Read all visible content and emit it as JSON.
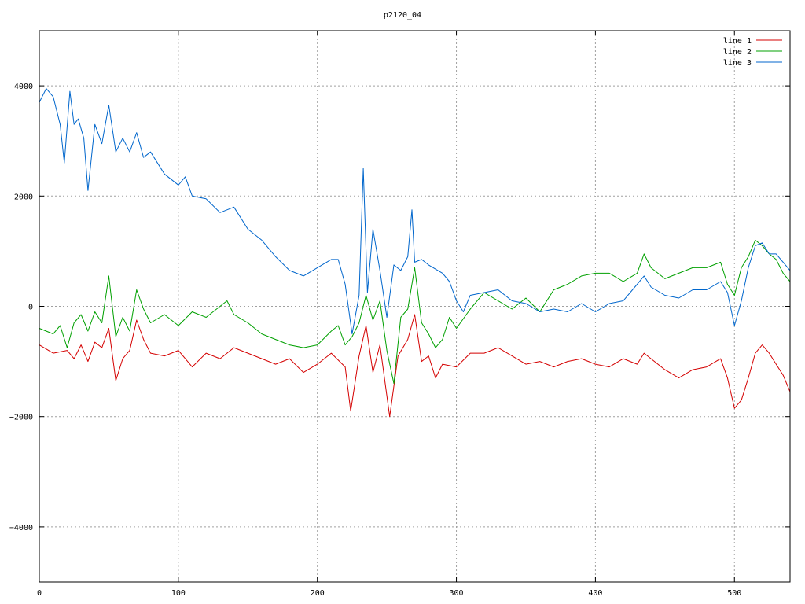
{
  "chart_data": {
    "type": "line",
    "title": "p2120_04",
    "xlabel": "",
    "ylabel": "",
    "xlim": [
      0,
      540
    ],
    "ylim": [
      -5000,
      5000
    ],
    "x_ticks": [
      0,
      100,
      200,
      300,
      400,
      500
    ],
    "y_ticks": [
      -4000,
      -2000,
      0,
      2000,
      4000
    ],
    "x_tick_labels": [
      "0",
      "100",
      "200",
      "300",
      "400",
      "500"
    ],
    "y_tick_labels": [
      "−4000",
      "−2000",
      "0",
      "2000",
      "4000"
    ],
    "grid": true,
    "legend_position": "top-right",
    "series": [
      {
        "name": "line 1",
        "color": "#d40000",
        "points": [
          [
            0,
            -700
          ],
          [
            10,
            -850
          ],
          [
            20,
            -800
          ],
          [
            25,
            -950
          ],
          [
            30,
            -700
          ],
          [
            35,
            -1000
          ],
          [
            40,
            -650
          ],
          [
            45,
            -750
          ],
          [
            50,
            -400
          ],
          [
            55,
            -1350
          ],
          [
            60,
            -950
          ],
          [
            65,
            -800
          ],
          [
            70,
            -250
          ],
          [
            75,
            -600
          ],
          [
            80,
            -850
          ],
          [
            90,
            -900
          ],
          [
            100,
            -800
          ],
          [
            110,
            -1100
          ],
          [
            120,
            -850
          ],
          [
            130,
            -950
          ],
          [
            140,
            -750
          ],
          [
            150,
            -850
          ],
          [
            160,
            -950
          ],
          [
            170,
            -1050
          ],
          [
            180,
            -950
          ],
          [
            190,
            -1200
          ],
          [
            200,
            -1050
          ],
          [
            210,
            -850
          ],
          [
            220,
            -1100
          ],
          [
            224,
            -1900
          ],
          [
            230,
            -900
          ],
          [
            235,
            -350
          ],
          [
            240,
            -1200
          ],
          [
            245,
            -700
          ],
          [
            252,
            -2000
          ],
          [
            258,
            -900
          ],
          [
            265,
            -600
          ],
          [
            270,
            -150
          ],
          [
            275,
            -1000
          ],
          [
            280,
            -900
          ],
          [
            285,
            -1300
          ],
          [
            290,
            -1050
          ],
          [
            300,
            -1100
          ],
          [
            310,
            -850
          ],
          [
            320,
            -850
          ],
          [
            330,
            -750
          ],
          [
            340,
            -900
          ],
          [
            350,
            -1050
          ],
          [
            360,
            -1000
          ],
          [
            370,
            -1100
          ],
          [
            380,
            -1000
          ],
          [
            390,
            -950
          ],
          [
            400,
            -1050
          ],
          [
            410,
            -1100
          ],
          [
            420,
            -950
          ],
          [
            430,
            -1050
          ],
          [
            435,
            -850
          ],
          [
            440,
            -950
          ],
          [
            450,
            -1150
          ],
          [
            460,
            -1300
          ],
          [
            470,
            -1150
          ],
          [
            480,
            -1100
          ],
          [
            490,
            -950
          ],
          [
            495,
            -1300
          ],
          [
            500,
            -1850
          ],
          [
            505,
            -1700
          ],
          [
            510,
            -1300
          ],
          [
            515,
            -850
          ],
          [
            520,
            -700
          ],
          [
            525,
            -850
          ],
          [
            530,
            -1050
          ],
          [
            535,
            -1250
          ],
          [
            540,
            -1550
          ]
        ]
      },
      {
        "name": "line 2",
        "color": "#00a000",
        "points": [
          [
            0,
            -400
          ],
          [
            10,
            -500
          ],
          [
            15,
            -350
          ],
          [
            20,
            -750
          ],
          [
            25,
            -300
          ],
          [
            30,
            -150
          ],
          [
            35,
            -450
          ],
          [
            40,
            -100
          ],
          [
            45,
            -300
          ],
          [
            50,
            550
          ],
          [
            55,
            -550
          ],
          [
            60,
            -200
          ],
          [
            65,
            -450
          ],
          [
            70,
            300
          ],
          [
            75,
            -50
          ],
          [
            80,
            -300
          ],
          [
            90,
            -150
          ],
          [
            100,
            -350
          ],
          [
            110,
            -100
          ],
          [
            120,
            -200
          ],
          [
            130,
            0
          ],
          [
            135,
            100
          ],
          [
            140,
            -150
          ],
          [
            150,
            -300
          ],
          [
            160,
            -500
          ],
          [
            170,
            -600
          ],
          [
            180,
            -700
          ],
          [
            190,
            -750
          ],
          [
            200,
            -700
          ],
          [
            210,
            -450
          ],
          [
            215,
            -350
          ],
          [
            220,
            -700
          ],
          [
            225,
            -550
          ],
          [
            230,
            -300
          ],
          [
            235,
            200
          ],
          [
            240,
            -250
          ],
          [
            245,
            100
          ],
          [
            250,
            -800
          ],
          [
            255,
            -1400
          ],
          [
            260,
            -200
          ],
          [
            265,
            -50
          ],
          [
            270,
            700
          ],
          [
            275,
            -300
          ],
          [
            280,
            -500
          ],
          [
            285,
            -750
          ],
          [
            290,
            -600
          ],
          [
            295,
            -200
          ],
          [
            300,
            -400
          ],
          [
            310,
            -50
          ],
          [
            320,
            250
          ],
          [
            330,
            100
          ],
          [
            340,
            -50
          ],
          [
            350,
            150
          ],
          [
            360,
            -100
          ],
          [
            370,
            300
          ],
          [
            380,
            400
          ],
          [
            390,
            550
          ],
          [
            400,
            600
          ],
          [
            410,
            600
          ],
          [
            420,
            450
          ],
          [
            430,
            600
          ],
          [
            435,
            950
          ],
          [
            440,
            700
          ],
          [
            450,
            500
          ],
          [
            460,
            600
          ],
          [
            470,
            700
          ],
          [
            480,
            700
          ],
          [
            490,
            800
          ],
          [
            495,
            400
          ],
          [
            500,
            200
          ],
          [
            505,
            700
          ],
          [
            510,
            900
          ],
          [
            515,
            1200
          ],
          [
            520,
            1100
          ],
          [
            525,
            950
          ],
          [
            530,
            850
          ],
          [
            535,
            600
          ],
          [
            540,
            450
          ]
        ]
      },
      {
        "name": "line 3",
        "color": "#0066cc",
        "points": [
          [
            0,
            3700
          ],
          [
            5,
            3950
          ],
          [
            10,
            3800
          ],
          [
            15,
            3300
          ],
          [
            18,
            2600
          ],
          [
            22,
            3900
          ],
          [
            25,
            3300
          ],
          [
            28,
            3400
          ],
          [
            32,
            3050
          ],
          [
            35,
            2100
          ],
          [
            40,
            3300
          ],
          [
            45,
            2950
          ],
          [
            50,
            3650
          ],
          [
            55,
            2800
          ],
          [
            60,
            3050
          ],
          [
            65,
            2800
          ],
          [
            70,
            3150
          ],
          [
            75,
            2700
          ],
          [
            80,
            2800
          ],
          [
            90,
            2400
          ],
          [
            100,
            2200
          ],
          [
            105,
            2350
          ],
          [
            110,
            2000
          ],
          [
            120,
            1950
          ],
          [
            130,
            1700
          ],
          [
            140,
            1800
          ],
          [
            150,
            1400
          ],
          [
            160,
            1200
          ],
          [
            170,
            900
          ],
          [
            180,
            650
          ],
          [
            190,
            550
          ],
          [
            200,
            700
          ],
          [
            210,
            850
          ],
          [
            215,
            850
          ],
          [
            220,
            400
          ],
          [
            225,
            -500
          ],
          [
            230,
            200
          ],
          [
            233,
            2500
          ],
          [
            236,
            250
          ],
          [
            240,
            1400
          ],
          [
            245,
            650
          ],
          [
            250,
            -200
          ],
          [
            255,
            750
          ],
          [
            260,
            650
          ],
          [
            265,
            900
          ],
          [
            268,
            1750
          ],
          [
            270,
            800
          ],
          [
            275,
            850
          ],
          [
            280,
            750
          ],
          [
            290,
            600
          ],
          [
            295,
            450
          ],
          [
            300,
            100
          ],
          [
            305,
            -100
          ],
          [
            310,
            200
          ],
          [
            320,
            250
          ],
          [
            330,
            300
          ],
          [
            340,
            100
          ],
          [
            350,
            50
          ],
          [
            360,
            -100
          ],
          [
            370,
            -50
          ],
          [
            380,
            -100
          ],
          [
            390,
            50
          ],
          [
            400,
            -100
          ],
          [
            410,
            50
          ],
          [
            420,
            100
          ],
          [
            430,
            400
          ],
          [
            435,
            550
          ],
          [
            440,
            350
          ],
          [
            450,
            200
          ],
          [
            460,
            150
          ],
          [
            470,
            300
          ],
          [
            480,
            300
          ],
          [
            490,
            450
          ],
          [
            495,
            250
          ],
          [
            500,
            -350
          ],
          [
            505,
            100
          ],
          [
            510,
            700
          ],
          [
            515,
            1100
          ],
          [
            520,
            1150
          ],
          [
            525,
            950
          ],
          [
            530,
            950
          ],
          [
            535,
            800
          ],
          [
            540,
            650
          ]
        ]
      }
    ]
  }
}
